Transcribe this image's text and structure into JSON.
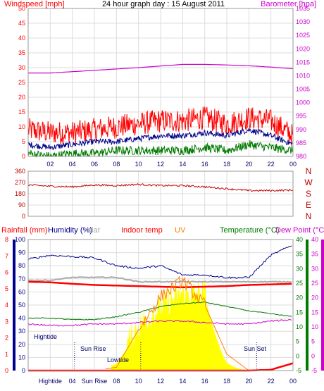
{
  "header": {
    "windspeed_label": "Windspeed [mph]",
    "title": "24 hour graph day : 15 August 2011",
    "barometer_label": "Barometer [hpa]"
  },
  "colors": {
    "windspeed": "#ff0000",
    "gust": "#ff0000",
    "avg_wind": "#00008b",
    "low_wind": "#007a00",
    "barometer": "#cc00cc",
    "direction": "#c00000",
    "rain": "#ff0000",
    "humidity": "#00008b",
    "solar": "#aaaaaa",
    "indoor": "#ff0000",
    "uv": "#ff8000",
    "temperature": "#007a00",
    "dewpoint": "#cc00cc",
    "solar_fill": "#ffff00",
    "grid": "#dddddd",
    "axis_text": "#333333"
  },
  "x_ticks": [
    "02",
    "04",
    "06",
    "08",
    "10",
    "12",
    "14",
    "16",
    "18",
    "20",
    "22",
    "00"
  ],
  "panel3_x_ticks": [
    "Hightide",
    "04",
    "Sun Rise",
    "08",
    "10",
    "12",
    "14",
    "16",
    "18",
    "20",
    "22",
    "00"
  ],
  "wind_panel": {
    "left_ticks": [
      "50",
      "45",
      "40",
      "35",
      "30",
      "25",
      "20",
      "15",
      "10",
      "5",
      "0"
    ],
    "right_ticks": [
      "1035",
      "1030",
      "1025",
      "1020",
      "1015",
      "1010",
      "1005",
      "1000",
      "995",
      "990",
      "985",
      "980"
    ]
  },
  "direction_panel": {
    "left_ticks": [
      "360",
      "270",
      "180",
      "90",
      "0"
    ],
    "right_letters": [
      "N",
      "W",
      "S",
      "E",
      "N"
    ]
  },
  "legend3": {
    "rain": "Rainfall (mm)",
    "humidity": "Humidity (%)",
    "solar": "olar",
    "indoor": "Indoor temp",
    "uv": "UV",
    "temperature": "Temperature (°C)",
    "dewpoint": "Dew Point (°C)"
  },
  "panel3": {
    "rain_ticks": [
      "8",
      "7",
      "6",
      "5",
      "4",
      "3",
      "2",
      "1",
      "0"
    ],
    "humidity_ticks": [
      "100",
      "90",
      "80",
      "70",
      "60",
      "50",
      "40",
      "30",
      "20",
      "10",
      "0"
    ],
    "temp_ticks": [
      "40",
      "35",
      "30",
      "25",
      "20",
      "15",
      "10",
      "5",
      "0",
      "-5"
    ],
    "annotations": {
      "hightide": "Hightide",
      "sunrise": "Sun Rise",
      "lowtide": "Lowtide",
      "sunset": "Sun Set"
    }
  },
  "chart_data": [
    {
      "type": "line",
      "title": "24 hour graph day : 15 August 2011",
      "xlabel": "",
      "ylabel": "Windspeed [mph]",
      "ylabel_right": "Barometer [hpa]",
      "x_hours": [
        0,
        2,
        4,
        6,
        8,
        10,
        12,
        14,
        16,
        18,
        20,
        22,
        24
      ],
      "ylim": [
        0,
        50
      ],
      "ylim_right": [
        980,
        1035
      ],
      "series": [
        {
          "name": "gust",
          "axis": "left",
          "values": [
            9,
            8,
            8,
            9,
            10,
            11,
            12,
            12,
            13,
            11,
            13,
            12,
            7
          ]
        },
        {
          "name": "average",
          "axis": "left",
          "values": [
            4,
            3,
            4,
            5,
            5,
            6,
            7,
            7,
            8,
            7,
            9,
            7,
            4
          ]
        },
        {
          "name": "low",
          "axis": "left",
          "values": [
            1,
            0,
            1,
            1,
            2,
            2,
            2,
            2,
            3,
            2,
            4,
            3,
            2
          ]
        },
        {
          "name": "barometer",
          "axis": "right",
          "values": [
            1011,
            1011,
            1011.5,
            1012,
            1012.5,
            1013,
            1013.6,
            1014.2,
            1014.2,
            1014,
            1013.7,
            1013.2,
            1012.6
          ]
        }
      ]
    },
    {
      "type": "line",
      "ylabel": "Wind direction",
      "x_hours": [
        0,
        2,
        4,
        6,
        8,
        10,
        12,
        14,
        16,
        18,
        20,
        22,
        24
      ],
      "ylim": [
        0,
        360
      ],
      "series": [
        {
          "name": "direction",
          "values": [
            250,
            240,
            235,
            250,
            245,
            255,
            245,
            245,
            235,
            220,
            205,
            205,
            210
          ]
        }
      ]
    },
    {
      "type": "line",
      "x_hours": [
        0,
        2,
        4,
        6,
        8,
        10,
        12,
        14,
        16,
        18,
        20,
        22,
        24
      ],
      "series": [
        {
          "name": "Humidity (%)",
          "axis": "humidity",
          "ylim": [
            0,
            100
          ],
          "values": [
            85,
            88,
            87,
            86,
            80,
            78,
            80,
            73,
            73,
            71,
            71,
            88,
            96
          ]
        },
        {
          "name": "Indoor temp",
          "axis": "temp",
          "ylim": [
            -5,
            40
          ],
          "values": [
            25.5,
            25.3,
            24.8,
            24.4,
            24.2,
            24,
            23.8,
            23.6,
            23.8,
            24,
            24.4,
            24.6,
            24.8
          ]
        },
        {
          "name": "olar",
          "axis": "temp",
          "ylim": [
            -5,
            40
          ],
          "values": [
            26,
            26,
            27,
            27,
            27,
            25.5,
            25.5,
            25.5,
            25.5,
            25.5,
            25.5,
            25.5,
            25.5
          ]
        },
        {
          "name": "Temperature (°C)",
          "axis": "temp",
          "ylim": [
            -5,
            40
          ],
          "values": [
            13,
            13,
            12.5,
            12.5,
            13.5,
            15,
            17,
            18,
            18.5,
            17,
            15.5,
            14.5,
            13.5
          ]
        },
        {
          "name": "Dew Point (°C)",
          "axis": "temp",
          "ylim": [
            -5,
            40
          ],
          "values": [
            11,
            10.5,
            10.5,
            11,
            11,
            11.5,
            12,
            12,
            11.5,
            11,
            11,
            12,
            12.5
          ]
        },
        {
          "name": "UV",
          "axis": "rain",
          "ylim": [
            0,
            8
          ],
          "values": [
            0,
            0,
            0,
            0,
            0.2,
            2.5,
            4.5,
            5.5,
            4,
            1,
            0,
            0,
            0
          ]
        },
        {
          "name": "solar",
          "axis": "humidity",
          "ylim": [
            0,
            100
          ],
          "values": [
            0,
            0,
            0,
            0,
            5,
            30,
            45,
            55,
            55,
            10,
            0,
            0,
            0
          ]
        },
        {
          "name": "Rainfall (mm)",
          "axis": "rain",
          "ylim": [
            0,
            8
          ],
          "values": [
            0,
            0,
            0,
            0,
            0,
            0,
            0,
            0,
            0,
            0,
            0,
            0.05,
            0.45
          ]
        }
      ]
    }
  ]
}
